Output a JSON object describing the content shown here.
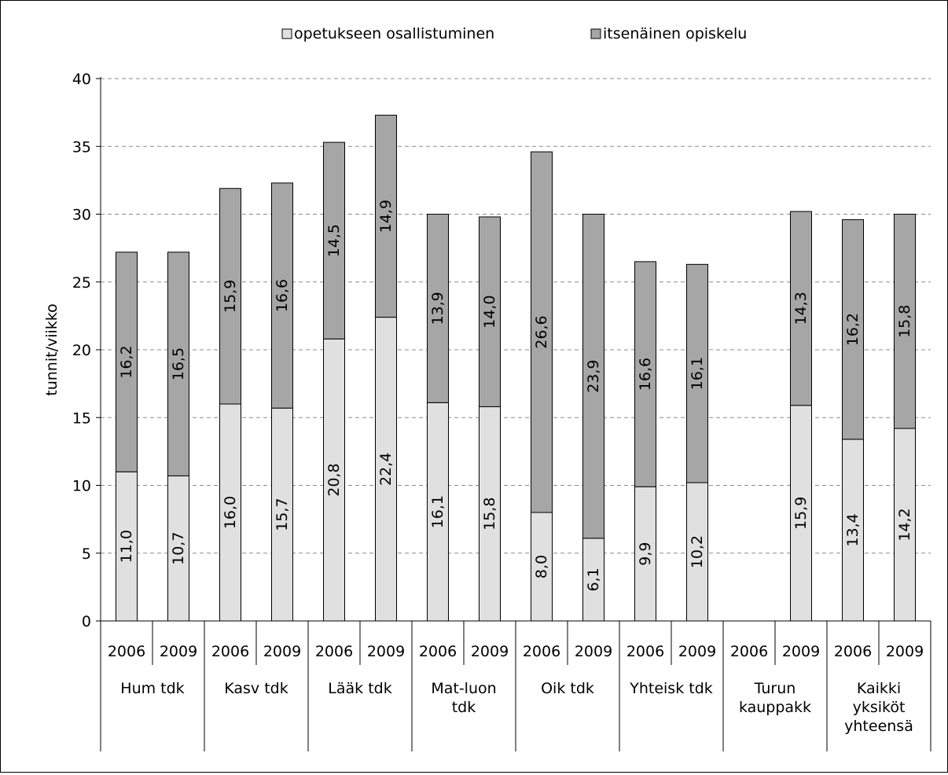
{
  "chart_data": {
    "type": "bar",
    "stacked": true,
    "title": "",
    "xlabel": "",
    "ylabel": "tunnit/viikko",
    "ylim": [
      0,
      40
    ],
    "yticks": [
      0,
      5,
      10,
      15,
      20,
      25,
      30,
      35,
      40
    ],
    "grid": true,
    "legend_position": "top",
    "groups": [
      {
        "label": "Hum tdk",
        "years": [
          "2006",
          "2009"
        ]
      },
      {
        "label": "Kasv tdk",
        "years": [
          "2006",
          "2009"
        ]
      },
      {
        "label": "Lääk tdk",
        "years": [
          "2006",
          "2009"
        ]
      },
      {
        "label": "Mat-luon tdk",
        "years": [
          "2006",
          "2009"
        ]
      },
      {
        "label": "Oik tdk",
        "years": [
          "2006",
          "2009"
        ]
      },
      {
        "label": "Yhteisk tdk",
        "years": [
          "2006",
          "2009"
        ]
      },
      {
        "label": "Turun kauppakk",
        "years": [
          "2006",
          "2009"
        ]
      },
      {
        "label": "Kaikki yksiköt yhteensä",
        "years": [
          "2006",
          "2009"
        ]
      }
    ],
    "series": [
      {
        "name": "opetukseen osallistuminen",
        "color": "#e0e0e0",
        "values": [
          11.0,
          10.7,
          16.0,
          15.7,
          20.8,
          22.4,
          16.1,
          15.8,
          8.0,
          6.1,
          9.9,
          10.2,
          null,
          15.9,
          13.4,
          14.2
        ],
        "labels": [
          "11,0",
          "10,7",
          "16,0",
          "15,7",
          "20,8",
          "22,4",
          "16,1",
          "15,8",
          "8,0",
          "6,1",
          "9,9",
          "10,2",
          "",
          "15,9",
          "13,4",
          "14,2"
        ]
      },
      {
        "name": "itsenäinen opiskelu",
        "color": "#a6a6a6",
        "values": [
          16.2,
          16.5,
          15.9,
          16.6,
          14.5,
          14.9,
          13.9,
          14.0,
          26.6,
          23.9,
          16.6,
          16.1,
          null,
          14.3,
          16.2,
          15.8
        ],
        "labels": [
          "16,2",
          "16,5",
          "15,9",
          "16,6",
          "14,5",
          "14,9",
          "13,9",
          "14,0",
          "26,6",
          "23,9",
          "16,6",
          "16,1",
          "",
          "14,3",
          "16,2",
          "15,8"
        ]
      }
    ]
  }
}
